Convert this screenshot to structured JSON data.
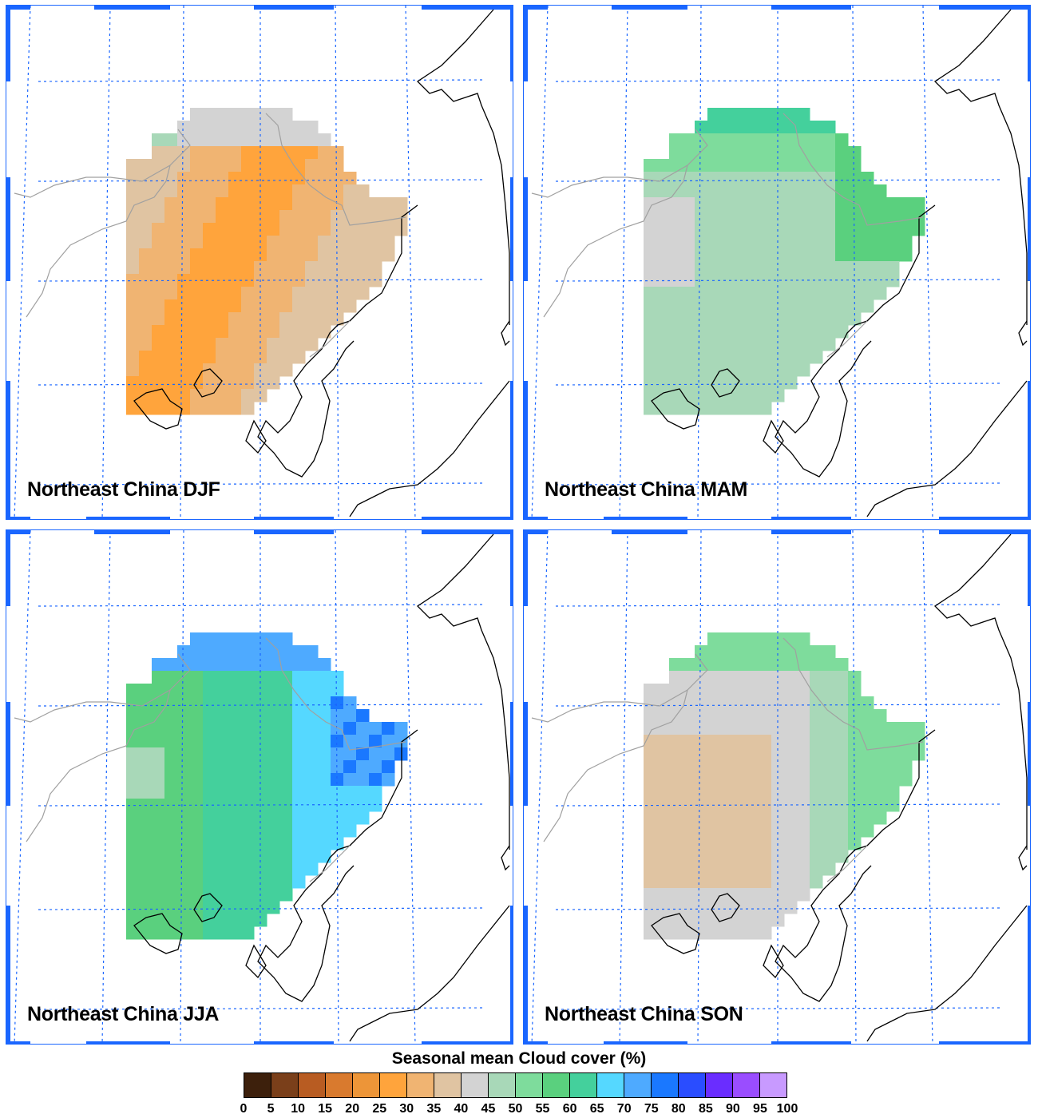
{
  "panels": [
    {
      "title": "Northeast China DJF",
      "season": "DJF"
    },
    {
      "title": "Northeast China MAM",
      "season": "MAM"
    },
    {
      "title": "Northeast China JJA",
      "season": "JJA"
    },
    {
      "title": "Northeast China SON",
      "season": "SON"
    }
  ],
  "colorbar": {
    "title": "Seasonal mean Cloud cover (%)",
    "ticks": [
      "0",
      "5",
      "10",
      "15",
      "20",
      "25",
      "30",
      "35",
      "40",
      "45",
      "50",
      "55",
      "60",
      "65",
      "70",
      "75",
      "80",
      "85",
      "90",
      "95",
      "100"
    ],
    "colors": [
      "#3d200c",
      "#7a3f1a",
      "#b85c22",
      "#d97a2e",
      "#ed9538",
      "#ffa43c",
      "#f0b472",
      "#e0c4a2",
      "#d3d3d3",
      "#a8d8b8",
      "#7edc9c",
      "#5ad07e",
      "#44d09c",
      "#55d8ff",
      "#4eaaff",
      "#1a78ff",
      "#2a4dff",
      "#6a2dff",
      "#9a4dff",
      "#c89aff"
    ]
  },
  "colors": {
    "frame": "#1a66ff",
    "grid": "#1a66ff",
    "coast": "#000000",
    "border": "#a0a0a0"
  }
}
